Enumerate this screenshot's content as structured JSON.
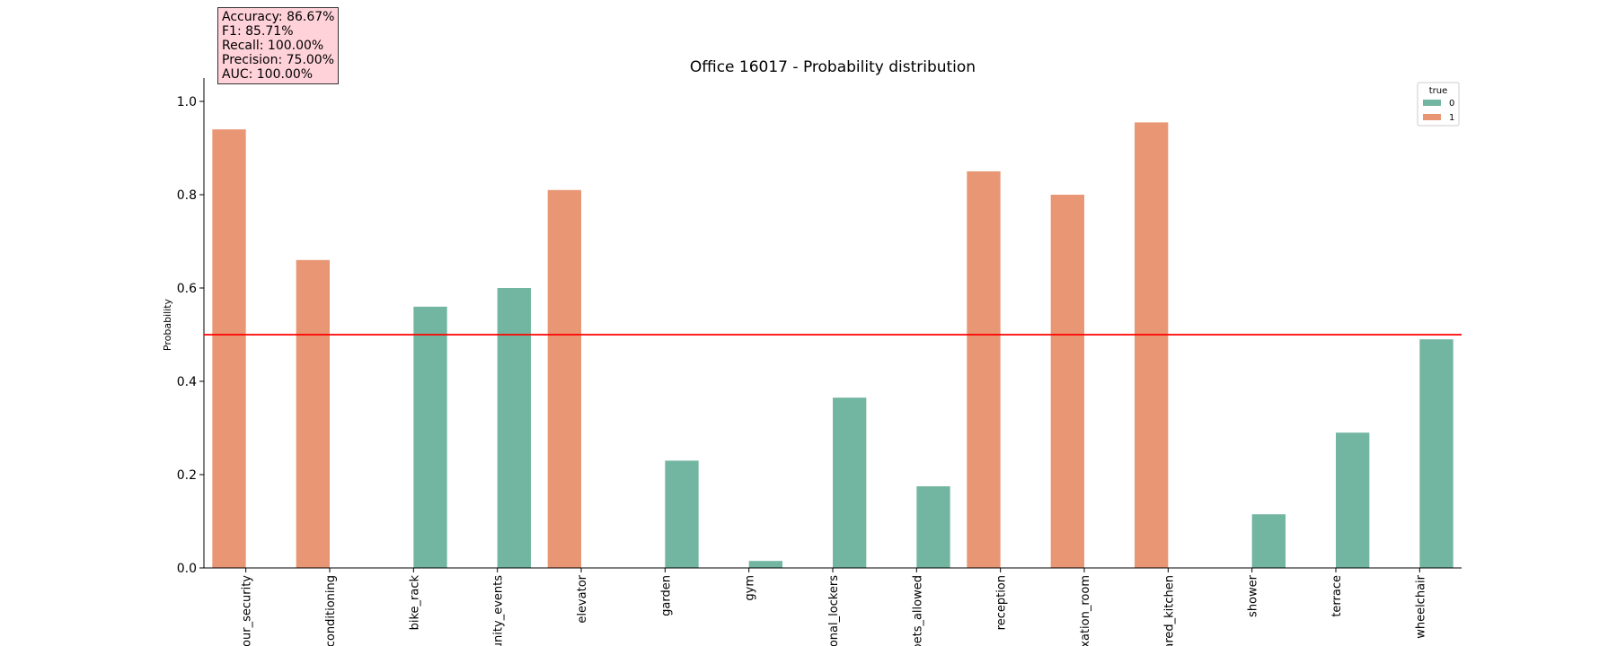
{
  "metrics": [
    "Accuracy: 86.67%",
    "F1: 85.71%",
    "Recall: 100.00%",
    "Precision: 75.00%",
    "AUC: 100.00%"
  ],
  "colors": {
    "class_0": "#72b6a1",
    "class_1": "#e99675",
    "threshold": "#ff0000"
  },
  "chart_data": {
    "type": "bar",
    "title": "Office 16017 - Probability distribution",
    "xlabel": "",
    "ylabel": "Probability",
    "ylim": [
      0,
      1.05
    ],
    "yticks": [
      "0.0",
      "0.2",
      "0.4",
      "0.6",
      "0.8",
      "1.0"
    ],
    "grid": false,
    "legend": {
      "title": "true",
      "position": "top-right",
      "entries": [
        "0",
        "1"
      ]
    },
    "threshold": 0.5,
    "categories": [
      "our_security",
      "conditioning",
      "bike_rack",
      "unity_events",
      "elevator",
      "garden",
      "gym",
      "onal_lockers",
      "pets_allowed",
      "reception",
      "xation_room",
      "ared_kitchen",
      "shower",
      "terrace",
      "wheelchair"
    ],
    "series": [
      {
        "name": "0",
        "values": [
          null,
          null,
          0.56,
          0.6,
          null,
          0.23,
          0.015,
          0.365,
          0.175,
          null,
          null,
          null,
          0.115,
          0.29,
          0.49
        ]
      },
      {
        "name": "1",
        "values": [
          0.94,
          0.66,
          null,
          null,
          0.81,
          null,
          null,
          null,
          null,
          0.85,
          0.8,
          0.955,
          null,
          null,
          null
        ]
      }
    ]
  }
}
